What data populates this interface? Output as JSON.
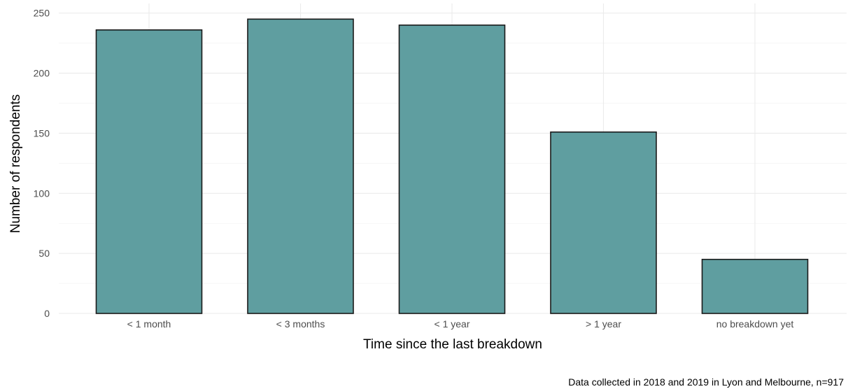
{
  "chart_data": {
    "type": "bar",
    "categories": [
      "< 1 month",
      "< 3 months",
      "< 1 year",
      "> 1 year",
      "no breakdown yet"
    ],
    "values": [
      236,
      245,
      240,
      151,
      45
    ],
    "xlabel": "Time since the last breakdown",
    "ylabel": "Number of respondents",
    "caption": "Data collected in 2018 and 2019 in Lyon and Melbourne, n=917",
    "ylim": [
      0,
      250
    ],
    "yticks": [
      0,
      50,
      100,
      150,
      200,
      250
    ],
    "grid": true,
    "bar_color": "#5f9ea0",
    "bar_edge_color": "#1a1a1a"
  }
}
